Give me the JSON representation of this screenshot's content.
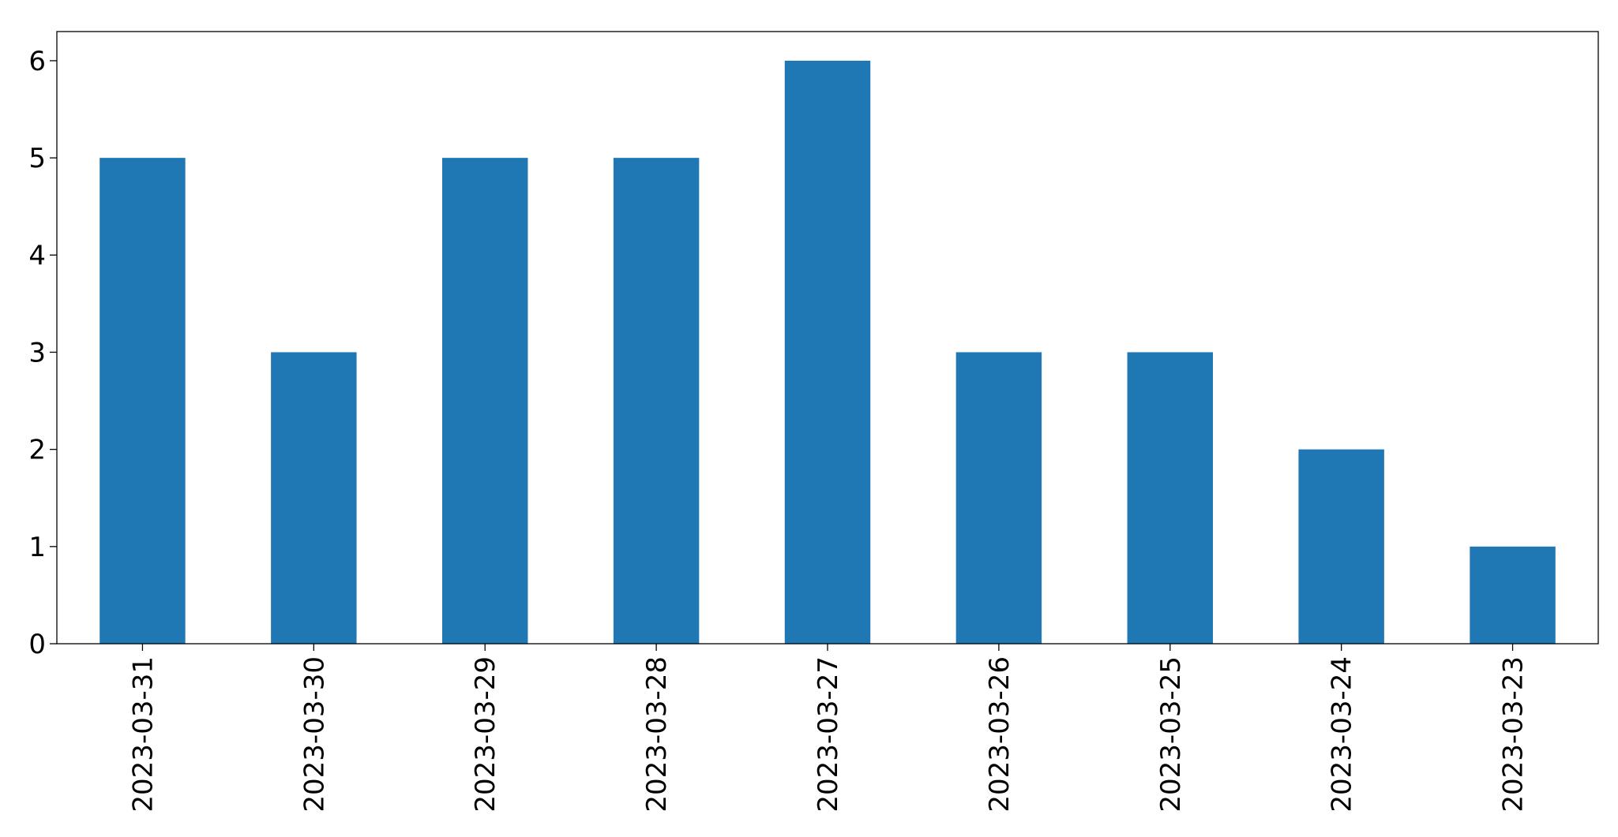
{
  "chart_data": {
    "type": "bar",
    "categories": [
      "2023-03-31",
      "2023-03-30",
      "2023-03-29",
      "2023-03-28",
      "2023-03-27",
      "2023-03-26",
      "2023-03-25",
      "2023-03-24",
      "2023-03-23"
    ],
    "values": [
      5,
      3,
      5,
      5,
      6,
      3,
      3,
      2,
      1
    ],
    "color": "#1f77b4",
    "ylim": [
      0,
      6.3
    ],
    "yticks": [
      0,
      1,
      2,
      3,
      4,
      5,
      6
    ],
    "grid": false
  }
}
